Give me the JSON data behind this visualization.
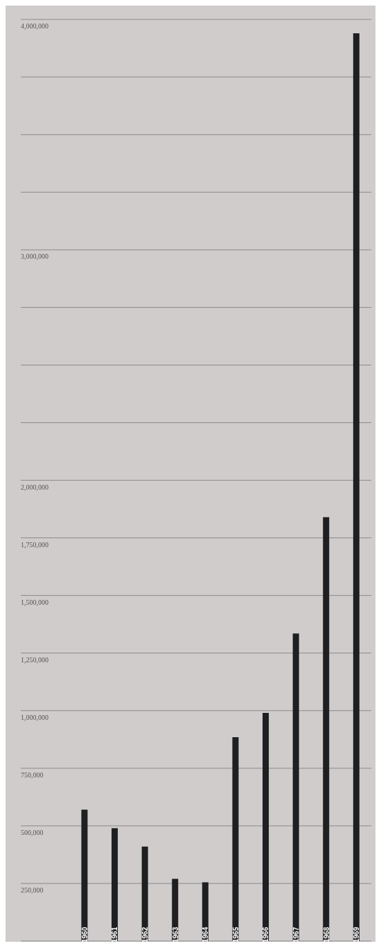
{
  "chart_data": {
    "type": "bar",
    "categories": [
      "1960",
      "1961",
      "1962",
      "1963",
      "1964",
      "1965",
      "1966",
      "1967",
      "1968",
      "1969"
    ],
    "values": [
      570000,
      490000,
      410000,
      270000,
      255000,
      885000,
      990000,
      1335000,
      1840000,
      3940000
    ],
    "color": "#1f1f22",
    "ylim": [
      0,
      4000000
    ],
    "yticks": [
      {
        "value": 250000,
        "label": "250,000"
      },
      {
        "value": 500000,
        "label": "500,000"
      },
      {
        "value": 750000,
        "label": "750,000"
      },
      {
        "value": 1000000,
        "label": "1,000,000"
      },
      {
        "value": 1250000,
        "label": "1,250,000"
      },
      {
        "value": 1500000,
        "label": "1,500,000"
      },
      {
        "value": 1750000,
        "label": "1,750,000"
      },
      {
        "value": 2000000,
        "label": "2,000,000"
      },
      {
        "value": 2250000,
        "label": null
      },
      {
        "value": 2500000,
        "label": null
      },
      {
        "value": 2750000,
        "label": null
      },
      {
        "value": 3000000,
        "label": "3,000,000"
      },
      {
        "value": 3250000,
        "label": null
      },
      {
        "value": 3500000,
        "label": null
      },
      {
        "value": 3750000,
        "label": null
      },
      {
        "value": 4000000,
        "label": "4,000,000"
      }
    ],
    "grid": "y"
  }
}
